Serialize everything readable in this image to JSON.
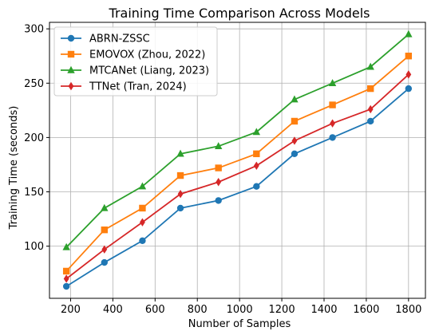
{
  "chart_data": {
    "type": "line",
    "title": "Training Time Comparison Across Models",
    "xlabel": "Number of Samples",
    "ylabel": "Training Time (seconds)",
    "x": [
      180,
      360,
      540,
      720,
      900,
      1080,
      1260,
      1440,
      1620,
      1800
    ],
    "xlim": [
      100,
      1880
    ],
    "ylim": [
      52,
      306
    ],
    "xticks": [
      200,
      400,
      600,
      800,
      1000,
      1200,
      1400,
      1600,
      1800
    ],
    "yticks": [
      100,
      150,
      200,
      250,
      300
    ],
    "grid": true,
    "legend_position": "top-left",
    "series": [
      {
        "name": "ABRN-ZSSC",
        "color": "#1f77b4",
        "marker": "circle",
        "values": [
          63,
          85,
          105,
          135,
          142,
          155,
          185,
          200,
          215,
          245
        ]
      },
      {
        "name": "EMOVOX (Zhou, 2022)",
        "color": "#ff7f0e",
        "marker": "square",
        "values": [
          77,
          115,
          135,
          165,
          172,
          185,
          215,
          230,
          245,
          275
        ]
      },
      {
        "name": "MTCANet (Liang, 2023)",
        "color": "#2ca02c",
        "marker": "triangle",
        "values": [
          99,
          135,
          155,
          185,
          192,
          205,
          235,
          250,
          265,
          295
        ]
      },
      {
        "name": "TTNet (Tran, 2024)",
        "color": "#d62728",
        "marker": "diamond",
        "values": [
          70,
          97,
          122,
          148,
          159,
          174,
          197,
          213,
          226,
          258
        ]
      }
    ]
  }
}
